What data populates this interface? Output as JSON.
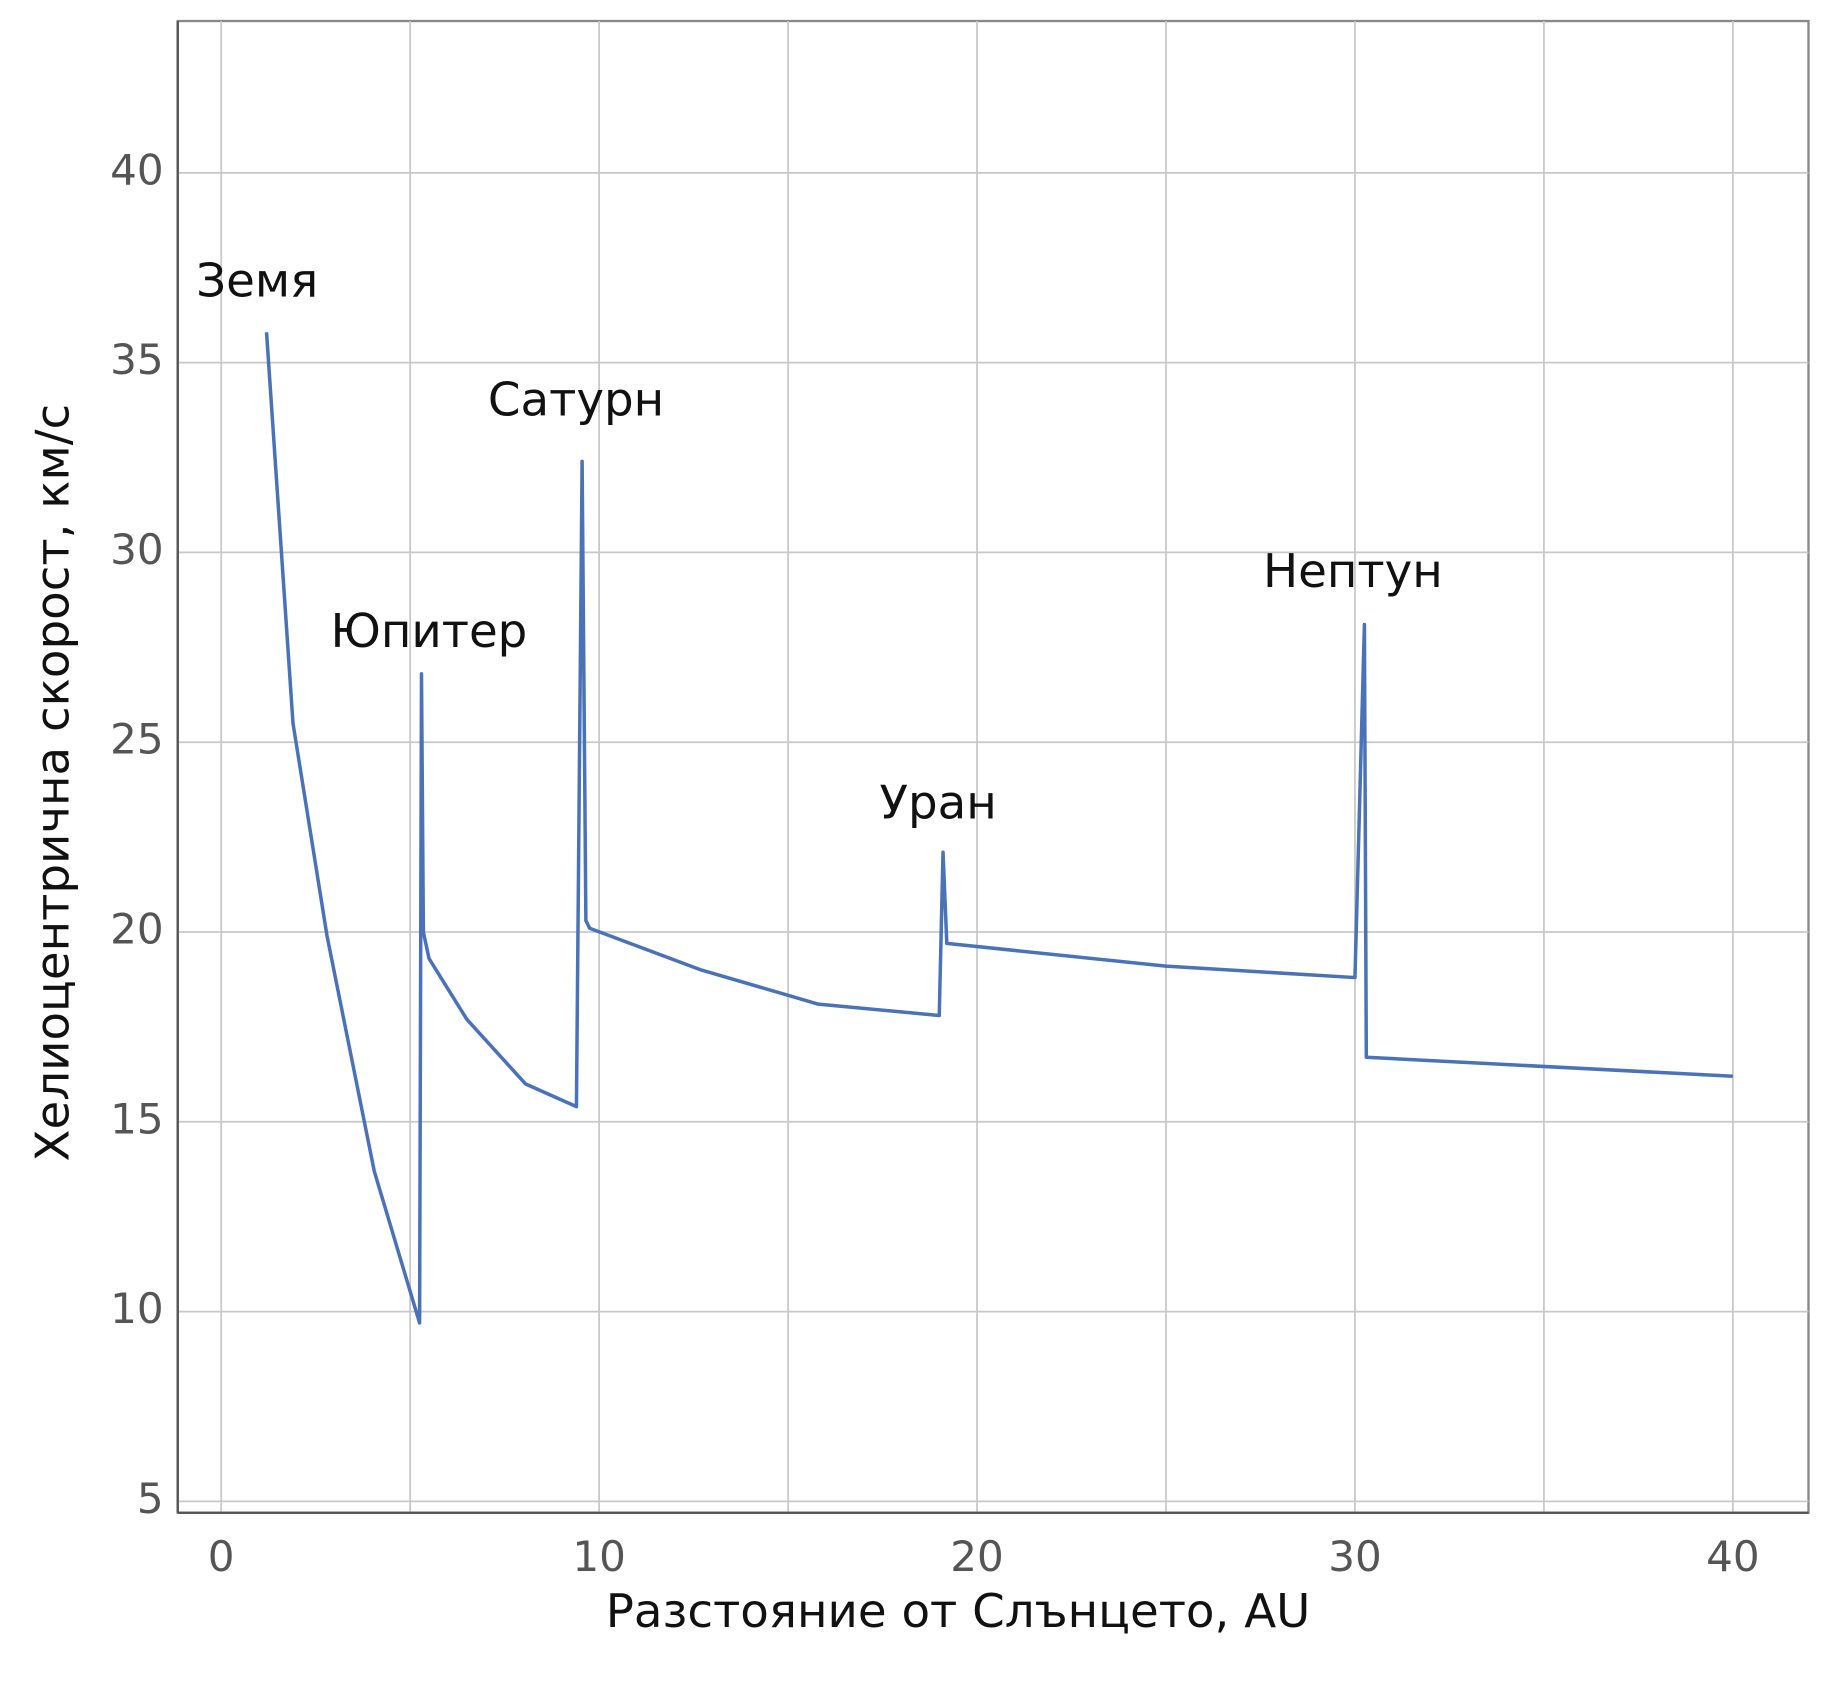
{
  "chart_data": {
    "type": "line",
    "x_label": "Разстояние от Слънцето, AU",
    "y_label": "Хелиоцентрична скорост, км/с",
    "annotations": [
      "Земя",
      "Юпитер",
      "Сатурн",
      "Уран",
      "Нептун"
    ],
    "x": [
      1.2,
      1.9,
      2.8,
      4.05,
      5.25,
      5.3,
      5.35,
      5.5,
      6.5,
      8.05,
      9.4,
      9.55,
      9.65,
      9.75,
      12.7,
      15.8,
      19.0,
      19.1,
      19.2,
      25.0,
      30.0,
      30.25,
      30.3,
      40.0
    ],
    "series": [
      {
        "color": "#4a72b8",
        "values": [
          35.8,
          25.5,
          19.9,
          13.7,
          9.7,
          26.8,
          20.0,
          19.3,
          17.7,
          16.0,
          15.4,
          32.4,
          20.3,
          20.1,
          19.0,
          18.1,
          17.8,
          22.1,
          19.7,
          19.1,
          18.8,
          28.1,
          16.7,
          16.2
        ]
      }
    ],
    "xlim": [
      -1.15,
      42
    ],
    "ylim": [
      4.7,
      44
    ],
    "xticks": [
      0,
      10,
      20,
      30,
      40
    ],
    "xminor": [
      5,
      15,
      25,
      35
    ],
    "yticks": [
      5,
      10,
      15,
      20,
      25,
      30,
      35,
      40
    ],
    "grid": true
  }
}
